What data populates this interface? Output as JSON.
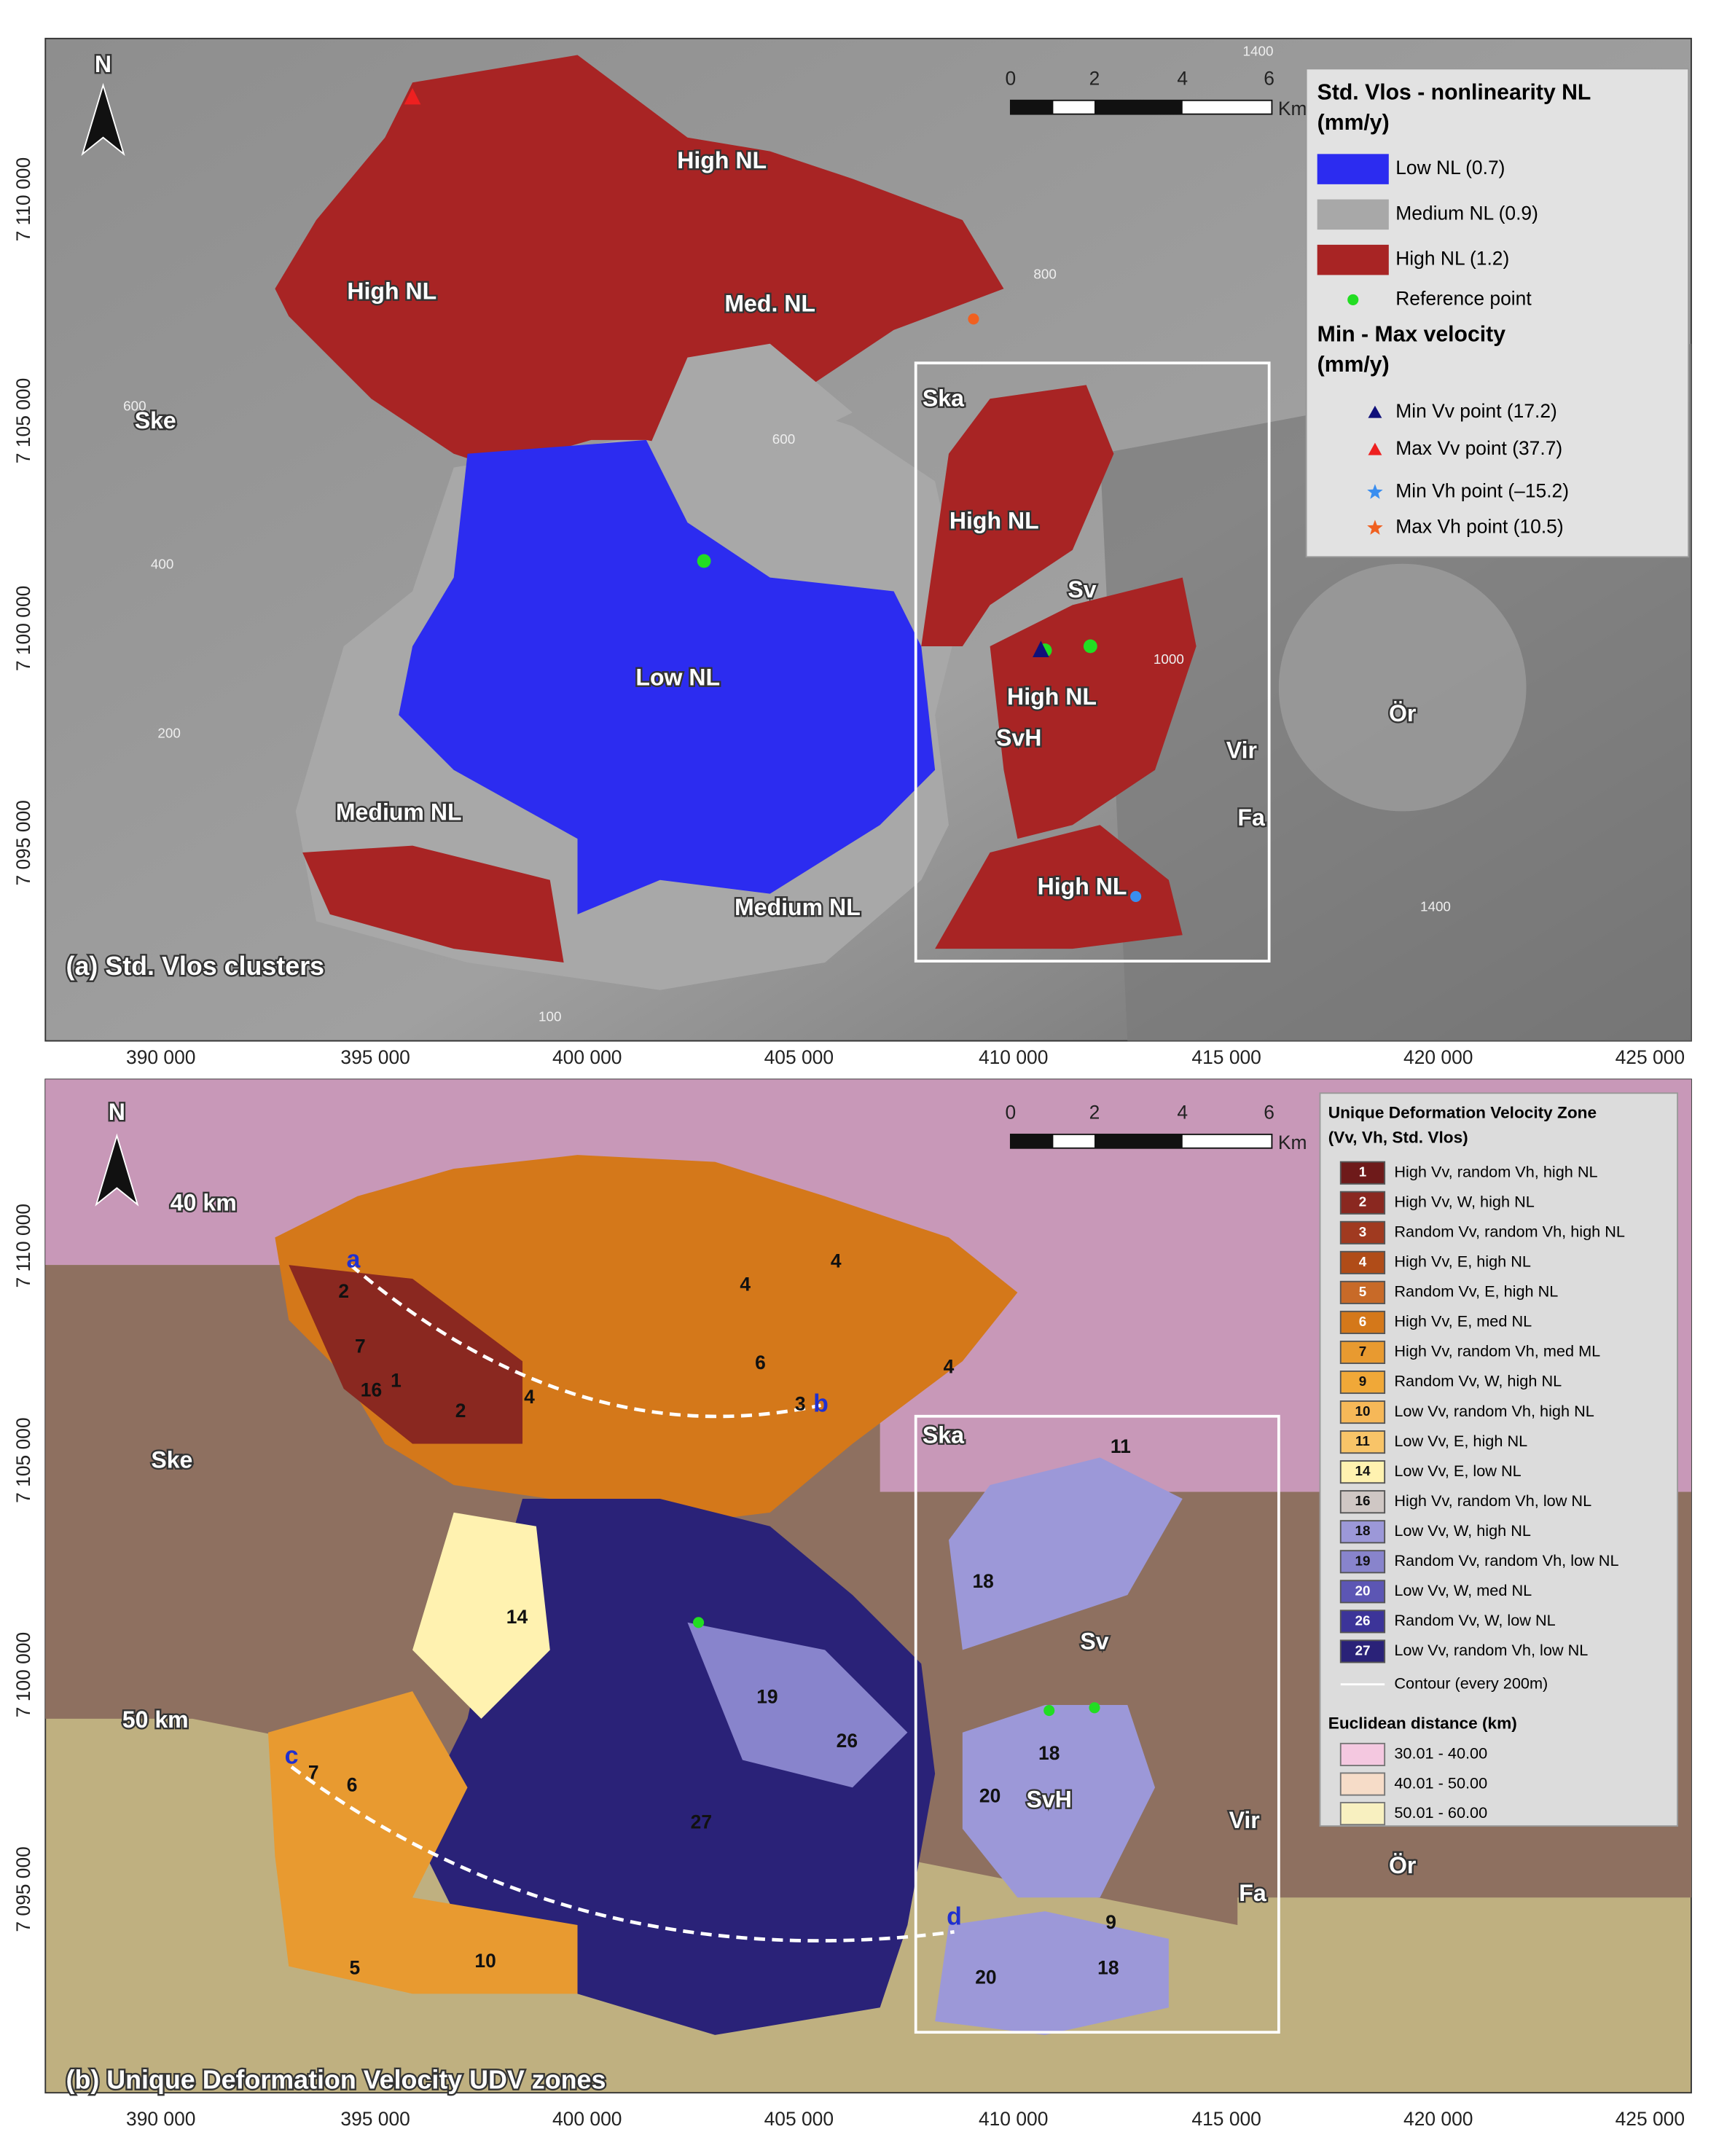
{
  "x_axis": {
    "ticks": [
      "390 000",
      "395 000",
      "400 000",
      "405 000",
      "410 000",
      "415 000",
      "420 000",
      "425 000"
    ]
  },
  "panels": [
    {
      "label": "(a) Std. Vlos clusters",
      "north": "N",
      "scale_bar": {
        "ticks": [
          "0",
          "2",
          "4",
          "6"
        ],
        "unit": "Km"
      },
      "y_ticks": [
        "7 110 000",
        "7 105 000",
        "7 100 000",
        "7 095 000"
      ],
      "map_labels": [
        "High NL",
        "High NL",
        "High NL",
        "High NL",
        "High NL",
        "Med. NL",
        "Ske",
        "Ska",
        "Low NL",
        "Medium NL",
        "Medium NL",
        "Sv",
        "SvH",
        "Vir",
        "Fa",
        "Ör"
      ],
      "contour_labels": [
        "600",
        "400",
        "200",
        "100",
        "1400",
        "1400",
        "800",
        "1000",
        "600"
      ],
      "legend": {
        "title": "Std. Vlos - nonlinearity NL (mm/y)",
        "items": [
          {
            "label": "Low NL (0.7)",
            "color": "#2c2cf0",
            "symbol": "rect"
          },
          {
            "label": "Medium NL (0.9)",
            "color": "#a8a8a8",
            "symbol": "rect"
          },
          {
            "label": "High NL (1.2)",
            "color": "#a82424",
            "symbol": "rect"
          },
          {
            "label": "Reference point",
            "color": "#22dd22",
            "symbol": "dot"
          }
        ],
        "title2": "Min - Max velocity (mm/y)",
        "items2": [
          {
            "label": "Min Vv point (17.2)",
            "color": "#10107a",
            "symbol": "triangle"
          },
          {
            "label": "Max Vv point (37.7)",
            "color": "#ee2020",
            "symbol": "triangle"
          },
          {
            "label": "Min Vh point (–15.2)",
            "color": "#3a8ef0",
            "symbol": "star"
          },
          {
            "label": "Max Vh point (10.5)",
            "color": "#f06020",
            "symbol": "star"
          }
        ]
      }
    },
    {
      "label": "(b) Unique Deformation Velocity UDV zones",
      "north": "N",
      "scale_bar": {
        "ticks": [
          "0",
          "2",
          "4",
          "6"
        ],
        "unit": "Km"
      },
      "y_ticks": [
        "7 110 000",
        "7 105 000",
        "7 100 000",
        "7 095 000"
      ],
      "map_labels": [
        "40 km",
        "50 km",
        "Ske",
        "Ska",
        "Sv",
        "SvH",
        "Vir",
        "Fa",
        "Ör"
      ],
      "profile_labels": [
        "a",
        "b",
        "c",
        "d"
      ],
      "zone_labels": [
        "4",
        "4",
        "2",
        "7",
        "16",
        "1",
        "2",
        "4",
        "6",
        "3",
        "4",
        "11",
        "14",
        "18",
        "19",
        "26",
        "27",
        "7",
        "6",
        "5",
        "10",
        "20",
        "20",
        "18",
        "9",
        "18"
      ],
      "legend": {
        "title": "Unique Deformation Velocity Zone (Vv, Vh, Std. Vlos)",
        "items": [
          {
            "code": "1",
            "label": "High Vv, random Vh, high NL",
            "color": "#6e1a1a"
          },
          {
            "code": "2",
            "label": "High Vv, W, high NL",
            "color": "#8a2820"
          },
          {
            "code": "3",
            "label": "Random Vv, random Vh, high NL",
            "color": "#a03a20"
          },
          {
            "code": "4",
            "label": "High Vv, E, high NL",
            "color": "#b04c18"
          },
          {
            "code": "5",
            "label": "Random Vv, E, high NL",
            "color": "#c86a28"
          },
          {
            "code": "6",
            "label": "High Vv, E, med NL",
            "color": "#d4781a"
          },
          {
            "code": "7",
            "label": "High Vv, random Vh, med ML",
            "color": "#e89a30"
          },
          {
            "code": "9",
            "label": "Random Vv, W, high NL",
            "color": "#f0a838"
          },
          {
            "code": "10",
            "label": "Low Vv, random Vh, high NL",
            "color": "#f6b858"
          },
          {
            "code": "11",
            "label": "Low Vv, E, high NL",
            "color": "#f8c468"
          },
          {
            "code": "14",
            "label": "Low Vv, E, low NL",
            "color": "#fff2b0"
          },
          {
            "code": "16",
            "label": "High Vv, random Vh, low NL",
            "color": "#cfc7c4"
          },
          {
            "code": "18",
            "label": "Low Vv, W, high NL",
            "color": "#9c98d8"
          },
          {
            "code": "19",
            "label": "Random Vv, random Vh, low NL",
            "color": "#8884cc"
          },
          {
            "code": "20",
            "label": "Low Vv, W, med NL",
            "color": "#5c56b4"
          },
          {
            "code": "26",
            "label": "Random Vv, W, low NL",
            "color": "#3c3499"
          },
          {
            "code": "27",
            "label": "Low Vv, random Vh, low NL",
            "color": "#2a2278"
          }
        ],
        "contour": "Contour (every 200m)",
        "title2": "Euclidean distance (km)",
        "items2": [
          {
            "label": "30.01 - 40.00",
            "color": "#f4c8e0"
          },
          {
            "label": "40.01 - 50.00",
            "color": "#f6dcc8"
          },
          {
            "label": "50.01 - 60.00",
            "color": "#f8f0c0"
          }
        ]
      }
    }
  ]
}
